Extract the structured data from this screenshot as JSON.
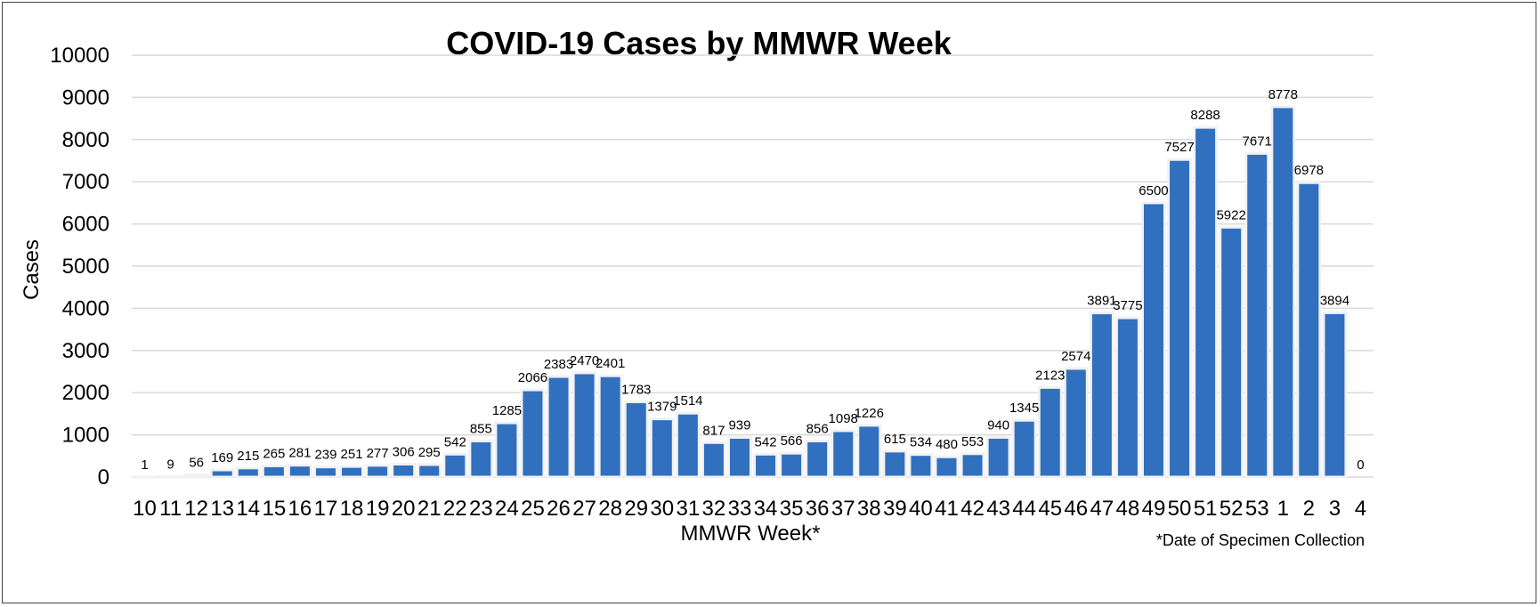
{
  "chart_data": {
    "type": "bar",
    "title": "COVID-19 Cases by MMWR Week",
    "xlabel": "MMWR Week*",
    "ylabel": "Cases",
    "footnote": "*Date of Specimen Collection",
    "ylim": [
      0,
      10000
    ],
    "yticks": [
      "0",
      "1000",
      "2000",
      "3000",
      "4000",
      "5000",
      "6000",
      "7000",
      "8000",
      "9000",
      "10000"
    ],
    "grid": true,
    "bar_color": "#3070bf",
    "categories": [
      "10",
      "11",
      "12",
      "13",
      "14",
      "15",
      "16",
      "17",
      "18",
      "19",
      "20",
      "21",
      "22",
      "23",
      "24",
      "25",
      "26",
      "27",
      "28",
      "29",
      "30",
      "31",
      "32",
      "33",
      "34",
      "35",
      "36",
      "37",
      "38",
      "39",
      "40",
      "41",
      "42",
      "43",
      "44",
      "45",
      "46",
      "47",
      "48",
      "49",
      "50",
      "51",
      "52",
      "53",
      "1",
      "2",
      "3",
      "4"
    ],
    "values": [
      1,
      9,
      56,
      169,
      215,
      265,
      281,
      239,
      251,
      277,
      306,
      295,
      542,
      855,
      1285,
      2066,
      2383,
      2470,
      2401,
      1783,
      1379,
      1514,
      817,
      939,
      542,
      566,
      856,
      1098,
      1226,
      615,
      534,
      480,
      553,
      940,
      1345,
      2123,
      2574,
      3891,
      3775,
      6500,
      7527,
      8288,
      5922,
      7671,
      8778,
      6978,
      3894,
      0
    ],
    "data_labels": [
      "1",
      "9",
      "56",
      "169",
      "215",
      "265",
      "281",
      "239",
      "251",
      "277",
      "306",
      "295",
      "542",
      "855",
      "1285",
      "2066",
      "2383",
      "2470",
      "2401",
      "1783",
      "1379",
      "1514",
      "817",
      "939",
      "542",
      "566",
      "856",
      "1098",
      "1226",
      "615",
      "534",
      "480",
      "553",
      "940",
      "1345",
      "2123",
      "2574",
      "3891",
      "3775",
      "6500",
      "7527",
      "8288",
      "5922",
      "7671",
      "8778",
      "6978",
      "3894",
      "0"
    ]
  }
}
